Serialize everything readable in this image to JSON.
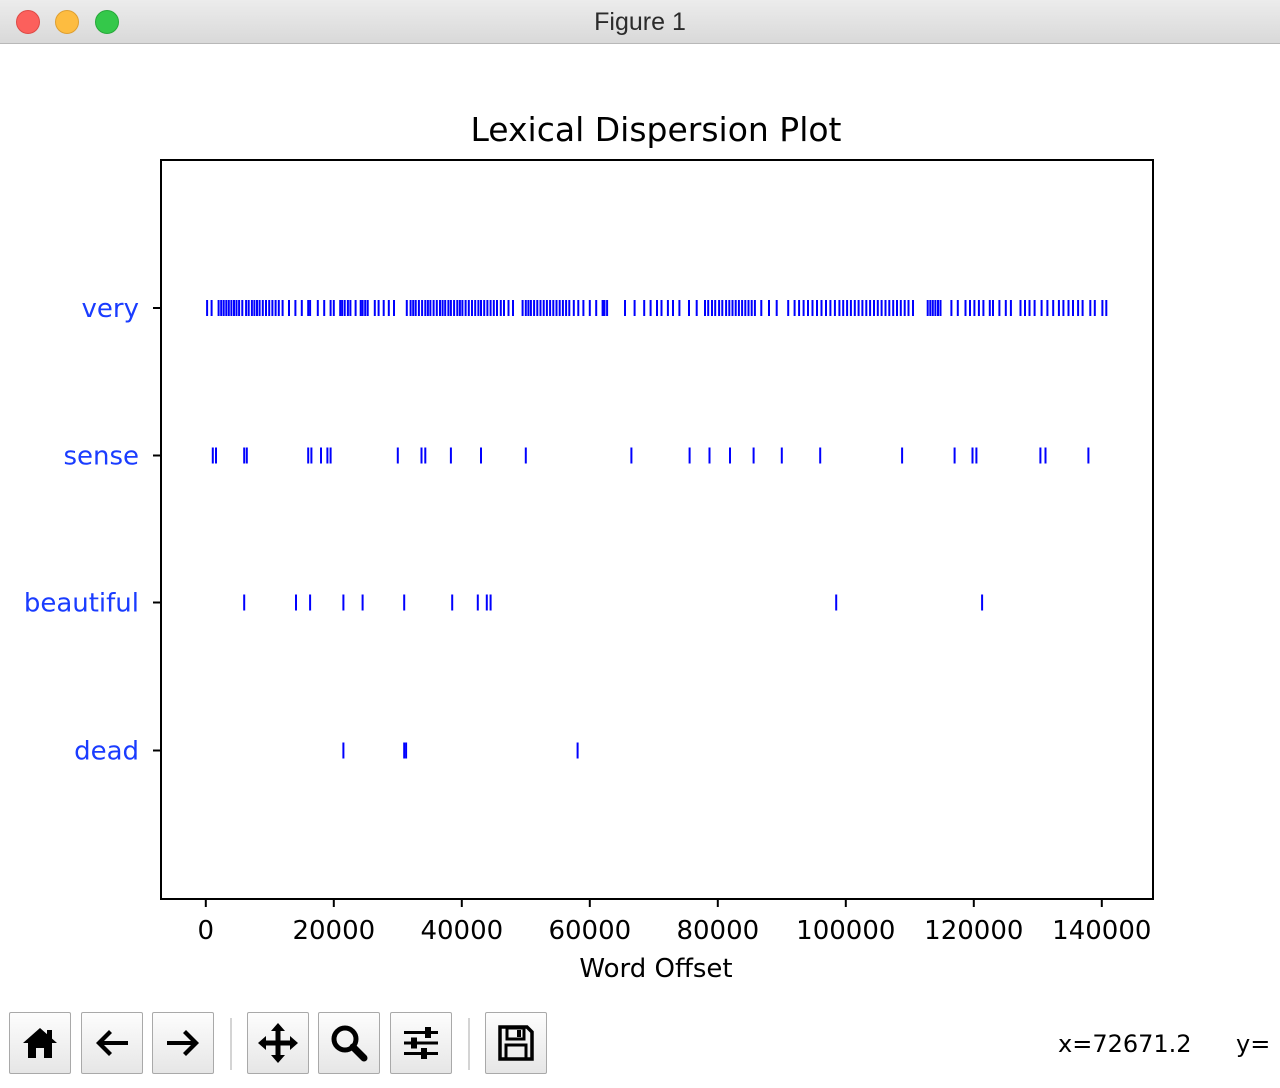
{
  "window": {
    "title": "Figure 1"
  },
  "chart_data": {
    "type": "scatter",
    "title": "Lexical Dispersion Plot",
    "xlabel": "Word Offset",
    "ylabel": "",
    "xlim": [
      -7000,
      148000
    ],
    "xticks": [
      0,
      20000,
      40000,
      60000,
      80000,
      100000,
      120000,
      140000
    ],
    "xtick_labels": [
      "0",
      "20000",
      "40000",
      "60000",
      "80000",
      "100000",
      "120000",
      "140000"
    ],
    "categories": [
      "very",
      "sense",
      "beautiful",
      "dead"
    ],
    "marker": "|",
    "color": "#0000ff",
    "label_color": "#1a3cff",
    "grid": false,
    "series": [
      {
        "name": "very",
        "x": [
          200,
          900,
          2000,
          2400,
          2800,
          3200,
          3600,
          4000,
          4400,
          4800,
          5200,
          5700,
          6300,
          6700,
          7200,
          7600,
          8000,
          8400,
          8900,
          9400,
          9900,
          10400,
          10900,
          11400,
          12000,
          13000,
          14000,
          15000,
          16000,
          16300,
          17500,
          18500,
          19500,
          20000,
          21000,
          21300,
          21700,
          22200,
          22600,
          23400,
          24200,
          24500,
          24900,
          25300,
          26400,
          27000,
          27800,
          28600,
          29400,
          31400,
          32000,
          32400,
          32800,
          33300,
          33800,
          34300,
          34700,
          35100,
          35600,
          36100,
          36600,
          37000,
          37400,
          37900,
          38300,
          38800,
          39300,
          39700,
          40100,
          40600,
          41100,
          41600,
          42100,
          42600,
          43000,
          43500,
          44000,
          44500,
          45000,
          45500,
          46100,
          46600,
          47300,
          48000,
          49500,
          50000,
          50400,
          50800,
          51300,
          51800,
          52300,
          52800,
          53300,
          53800,
          54300,
          54800,
          55300,
          55800,
          56300,
          56800,
          57500,
          58200,
          59000,
          60000,
          61000,
          62000,
          62300,
          62700,
          65500,
          67000,
          68500,
          69500,
          70500,
          71200,
          72200,
          73000,
          74000,
          75500,
          76700,
          78000,
          78500,
          79100,
          79600,
          80200,
          80700,
          81300,
          81800,
          82300,
          82800,
          83300,
          83800,
          84300,
          84800,
          85300,
          85800,
          86800,
          88000,
          89200,
          91000,
          92000,
          92700,
          93400,
          94100,
          94800,
          95500,
          96200,
          96900,
          97600,
          98300,
          99000,
          99600,
          100200,
          100800,
          101400,
          102000,
          102600,
          103200,
          103800,
          104400,
          105000,
          105600,
          106200,
          106800,
          107400,
          108000,
          108600,
          109200,
          109800,
          110500,
          112800,
          113200,
          113600,
          114000,
          114400,
          114800,
          116500,
          117500,
          118700,
          119400,
          120100,
          120800,
          121500,
          122500,
          123000,
          124000,
          125000,
          125800,
          127300,
          128000,
          128700,
          129500,
          130600,
          131500,
          132400,
          133300,
          134000,
          134800,
          135500,
          136300,
          137000,
          138200,
          138900,
          140100,
          140700
        ]
      },
      {
        "name": "sense",
        "x": [
          1100,
          1600,
          6000,
          6400,
          16000,
          16500,
          18000,
          19000,
          19500,
          30000,
          33700,
          34300,
          38300,
          43000,
          50000,
          66500,
          75600,
          78700,
          81900,
          85600,
          90000,
          96000,
          108800,
          117000,
          119800,
          120400,
          130400,
          131200,
          137900
        ]
      },
      {
        "name": "beautiful",
        "x": [
          6000,
          14100,
          16300,
          21500,
          24500,
          31000,
          38500,
          42500,
          43900,
          44500,
          98500,
          121300
        ]
      },
      {
        "name": "dead",
        "x": [
          21500,
          31000,
          31300,
          58100
        ]
      }
    ]
  },
  "toolbar": {
    "buttons": [
      {
        "name": "home-button",
        "icon": "home-icon"
      },
      {
        "name": "back-button",
        "icon": "arrow-left-icon"
      },
      {
        "name": "forward-button",
        "icon": "arrow-right-icon"
      },
      {
        "name": "pan-button",
        "icon": "move-icon"
      },
      {
        "name": "zoom-button",
        "icon": "magnifier-icon"
      },
      {
        "name": "configure-subplots-button",
        "icon": "sliders-icon"
      },
      {
        "name": "save-button",
        "icon": "floppy-disk-icon"
      }
    ],
    "coords": {
      "x_text": "x=72671.2",
      "y_text": "y="
    }
  }
}
